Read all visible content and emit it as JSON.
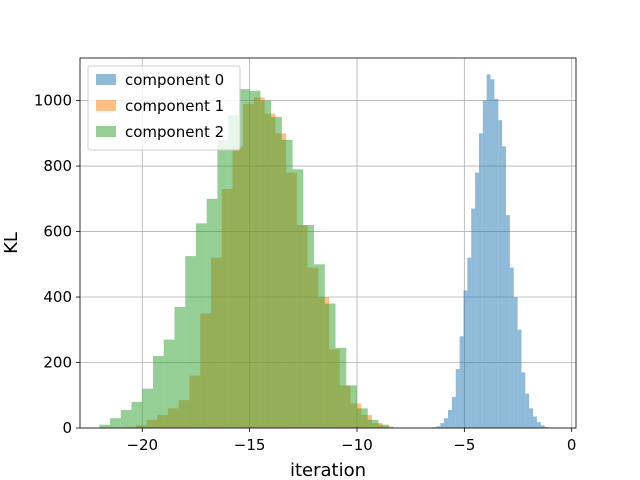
{
  "chart_data": {
    "type": "histogram",
    "title": "",
    "xlabel": "iteration",
    "ylabel": "KL",
    "xlim": [
      -22.9,
      0.2
    ],
    "ylim": [
      0,
      1130
    ],
    "xticks": [
      -20,
      -15,
      -10,
      -5,
      0
    ],
    "xtick_labels": [
      "−20",
      "−15",
      "−10",
      "−5",
      "0"
    ],
    "yticks": [
      0,
      200,
      400,
      600,
      800,
      1000
    ],
    "ytick_labels": [
      "0",
      "200",
      "400",
      "600",
      "800",
      "1000"
    ],
    "grid": true,
    "legend_position": "top-left",
    "series": [
      {
        "name": "component 0",
        "color": "#1f77b4",
        "opacity": 0.5,
        "bins": [
          [
            -6.49,
            -6.3,
            2
          ],
          [
            -6.3,
            -6.12,
            5
          ],
          [
            -6.12,
            -5.94,
            15
          ],
          [
            -5.94,
            -5.76,
            30
          ],
          [
            -5.76,
            -5.58,
            55
          ],
          [
            -5.58,
            -5.4,
            95
          ],
          [
            -5.4,
            -5.22,
            180
          ],
          [
            -5.22,
            -5.04,
            280
          ],
          [
            -5.04,
            -4.86,
            420
          ],
          [
            -4.86,
            -4.68,
            520
          ],
          [
            -4.68,
            -4.5,
            670
          ],
          [
            -4.5,
            -4.32,
            780
          ],
          [
            -4.32,
            -4.14,
            900
          ],
          [
            -4.14,
            -3.96,
            1000
          ],
          [
            -3.96,
            -3.78,
            1080
          ],
          [
            -3.78,
            -3.6,
            1065
          ],
          [
            -3.6,
            -3.42,
            1005
          ],
          [
            -3.42,
            -3.24,
            940
          ],
          [
            -3.24,
            -3.06,
            860
          ],
          [
            -3.06,
            -2.88,
            650
          ],
          [
            -2.88,
            -2.7,
            490
          ],
          [
            -2.7,
            -2.52,
            400
          ],
          [
            -2.52,
            -2.34,
            300
          ],
          [
            -2.34,
            -2.16,
            170
          ],
          [
            -2.16,
            -1.98,
            105
          ],
          [
            -1.98,
            -1.8,
            60
          ],
          [
            -1.8,
            -1.62,
            35
          ],
          [
            -1.62,
            -1.44,
            18
          ],
          [
            -1.44,
            -1.26,
            8
          ],
          [
            -1.26,
            -1.08,
            3
          ],
          [
            -1.08,
            -0.9,
            1
          ]
        ]
      },
      {
        "name": "component 1",
        "color": "#ff7f0e",
        "opacity": 0.5,
        "bins": [
          [
            -20.8,
            -20.3,
            2
          ],
          [
            -20.3,
            -19.8,
            8
          ],
          [
            -19.8,
            -19.3,
            25
          ],
          [
            -19.3,
            -18.8,
            40
          ],
          [
            -18.8,
            -18.3,
            60
          ],
          [
            -18.3,
            -17.8,
            85
          ],
          [
            -17.8,
            -17.3,
            160
          ],
          [
            -17.3,
            -16.8,
            350
          ],
          [
            -16.8,
            -16.3,
            520
          ],
          [
            -16.3,
            -15.8,
            730
          ],
          [
            -15.8,
            -15.3,
            860
          ],
          [
            -15.3,
            -14.8,
            990
          ],
          [
            -14.8,
            -14.3,
            1010
          ],
          [
            -14.3,
            -13.8,
            960
          ],
          [
            -13.8,
            -13.3,
            900
          ],
          [
            -13.3,
            -12.8,
            780
          ],
          [
            -12.8,
            -12.3,
            620
          ],
          [
            -12.3,
            -11.8,
            490
          ],
          [
            -11.8,
            -11.3,
            400
          ],
          [
            -11.3,
            -10.8,
            240
          ],
          [
            -10.8,
            -10.3,
            130
          ],
          [
            -10.3,
            -9.8,
            75
          ],
          [
            -9.8,
            -9.3,
            40
          ],
          [
            -9.3,
            -8.8,
            15
          ],
          [
            -8.8,
            -8.3,
            5
          ]
        ]
      },
      {
        "name": "component 2",
        "color": "#2ca02c",
        "opacity": 0.5,
        "bins": [
          [
            -22.0,
            -21.5,
            10
          ],
          [
            -21.5,
            -21.0,
            30
          ],
          [
            -21.0,
            -20.5,
            55
          ],
          [
            -20.5,
            -20.0,
            80
          ],
          [
            -20.0,
            -19.5,
            120
          ],
          [
            -19.5,
            -19.0,
            220
          ],
          [
            -19.0,
            -18.5,
            270
          ],
          [
            -18.5,
            -18.0,
            370
          ],
          [
            -18.0,
            -17.5,
            525
          ],
          [
            -17.5,
            -17.0,
            625
          ],
          [
            -17.0,
            -16.5,
            700
          ],
          [
            -16.5,
            -16.0,
            880
          ],
          [
            -16.0,
            -15.5,
            955
          ],
          [
            -15.5,
            -15.0,
            1035
          ],
          [
            -15.0,
            -14.5,
            1030
          ],
          [
            -14.5,
            -14.0,
            1000
          ],
          [
            -14.0,
            -13.5,
            950
          ],
          [
            -13.5,
            -13.0,
            880
          ],
          [
            -13.0,
            -12.5,
            790
          ],
          [
            -12.5,
            -12.0,
            620
          ],
          [
            -12.0,
            -11.5,
            500
          ],
          [
            -11.5,
            -11.0,
            380
          ],
          [
            -11.0,
            -10.5,
            245
          ],
          [
            -10.5,
            -10.0,
            130
          ],
          [
            -10.0,
            -9.5,
            60
          ],
          [
            -9.5,
            -9.0,
            25
          ],
          [
            -9.0,
            -8.5,
            10
          ]
        ]
      }
    ]
  }
}
